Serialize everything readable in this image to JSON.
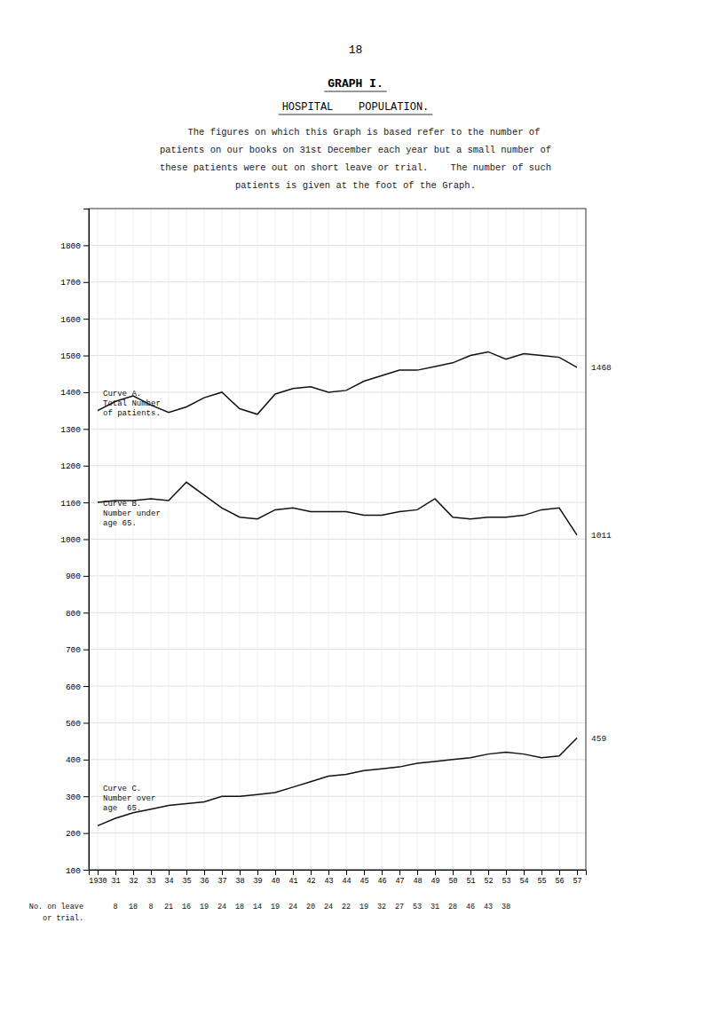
{
  "chart_data": {
    "type": "line",
    "page_number": "18",
    "title": "GRAPH I.",
    "subtitle": "HOSPITAL    POPULATION.",
    "description": [
      "   The figures on which this Graph is based refer to the number of",
      "patients on our books on 31st December each year but a small number of",
      "these patients were out on short leave or trial.    The number of such",
      "patients is given at the foot of the Graph."
    ],
    "categories": [
      "1930",
      "31",
      "32",
      "33",
      "34",
      "35",
      "36",
      "37",
      "38",
      "39",
      "40",
      "41",
      "42",
      "43",
      "44",
      "45",
      "46",
      "47",
      "48",
      "49",
      "50",
      "51",
      "52",
      "53",
      "54",
      "55",
      "56",
      "57"
    ],
    "series": [
      {
        "color": "#111111",
        "values": [
          1350,
          1375,
          1390,
          1365,
          1345,
          1360,
          1385,
          1400,
          1355,
          1340,
          1395,
          1410,
          1415,
          1400,
          1405,
          1430,
          1445,
          1460,
          1460,
          1470,
          1480,
          1500,
          1510,
          1490,
          1505,
          1500,
          1495,
          1468
        ]
      },
      {
        "color": "#111111",
        "values": [
          1100,
          1105,
          1105,
          1110,
          1105,
          1155,
          1120,
          1085,
          1060,
          1055,
          1080,
          1085,
          1075,
          1075,
          1075,
          1065,
          1065,
          1075,
          1080,
          1110,
          1060,
          1055,
          1060,
          1060,
          1065,
          1080,
          1085,
          1011
        ]
      },
      {
        "color": "#111111",
        "values": [
          220,
          240,
          255,
          265,
          275,
          280,
          285,
          300,
          300,
          305,
          310,
          325,
          340,
          355,
          360,
          370,
          375,
          380,
          390,
          395,
          400,
          405,
          415,
          420,
          415,
          405,
          410,
          459
        ]
      }
    ],
    "ylim": [
      100,
      1900
    ],
    "yticks": [
      100,
      200,
      300,
      400,
      500,
      600,
      700,
      800,
      900,
      1000,
      1100,
      1200,
      1300,
      1400,
      1500,
      1600,
      1700,
      1800
    ],
    "grid": true,
    "annotations": [
      {
        "text": "Curve A.\nTotal Number\nof patients.",
        "x": "1930",
        "y": 1415
      },
      {
        "text": "Curve B.\nNumber under\nage 65.",
        "x": "1930",
        "y": 1115
      },
      {
        "text": "Curve C.\nNumber over\nage  65.",
        "x": "1930",
        "y": 340
      },
      {
        "text": "1468",
        "y": 1468
      },
      {
        "text": "1011",
        "y": 1011
      },
      {
        "text": "459",
        "y": 459
      }
    ],
    "leave_label": "No. on leave\n  or trial.",
    "leave_counts": [
      null,
      8,
      18,
      8,
      21,
      16,
      19,
      24,
      18,
      14,
      19,
      24,
      20,
      24,
      22,
      19,
      32,
      27,
      53,
      31,
      28,
      46,
      43,
      38,
      null,
      null,
      null,
      null
    ]
  }
}
